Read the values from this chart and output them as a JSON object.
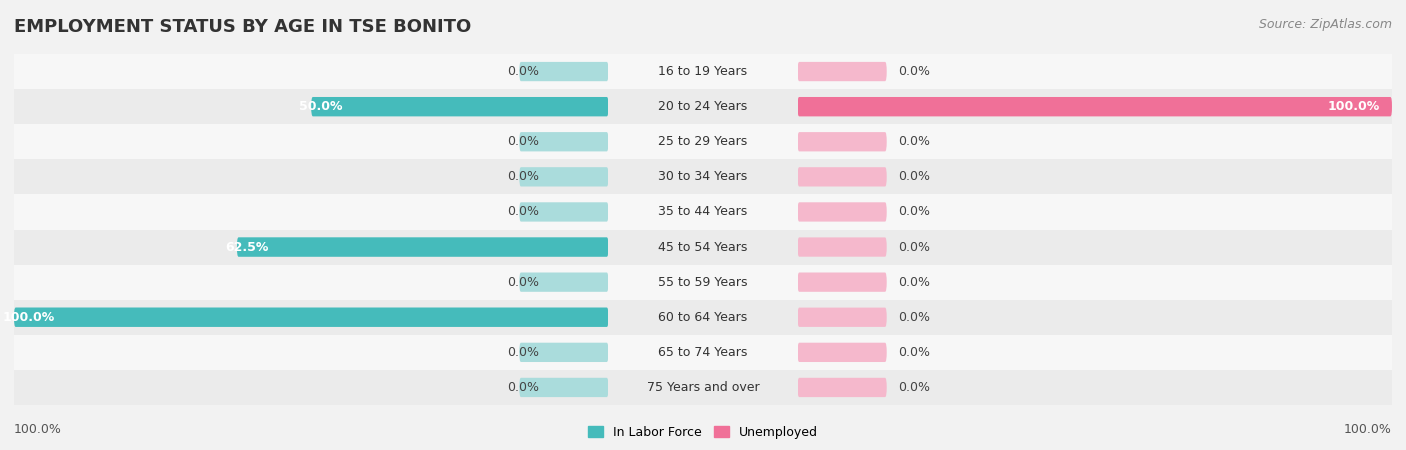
{
  "title": "EMPLOYMENT STATUS BY AGE IN TSE BONITO",
  "source": "Source: ZipAtlas.com",
  "categories": [
    "16 to 19 Years",
    "20 to 24 Years",
    "25 to 29 Years",
    "30 to 34 Years",
    "35 to 44 Years",
    "45 to 54 Years",
    "55 to 59 Years",
    "60 to 64 Years",
    "65 to 74 Years",
    "75 Years and over"
  ],
  "in_labor_force": [
    0.0,
    50.0,
    0.0,
    0.0,
    0.0,
    62.5,
    0.0,
    100.0,
    0.0,
    0.0
  ],
  "unemployed": [
    0.0,
    100.0,
    0.0,
    0.0,
    0.0,
    0.0,
    0.0,
    0.0,
    0.0,
    0.0
  ],
  "labor_force_color": "#45BBBB",
  "unemployed_color": "#F07098",
  "labor_bg_color": "#AADCDC",
  "unemployed_bg_color": "#F5B8CC",
  "row_colors": [
    "#f7f7f7",
    "#ebebeb"
  ],
  "xlim": 100,
  "legend_labor": "In Labor Force",
  "legend_unemployed": "Unemployed",
  "title_fontsize": 13,
  "source_fontsize": 9,
  "label_fontsize": 9,
  "category_fontsize": 9,
  "bar_height": 0.55,
  "bg_bar_pct": 15
}
